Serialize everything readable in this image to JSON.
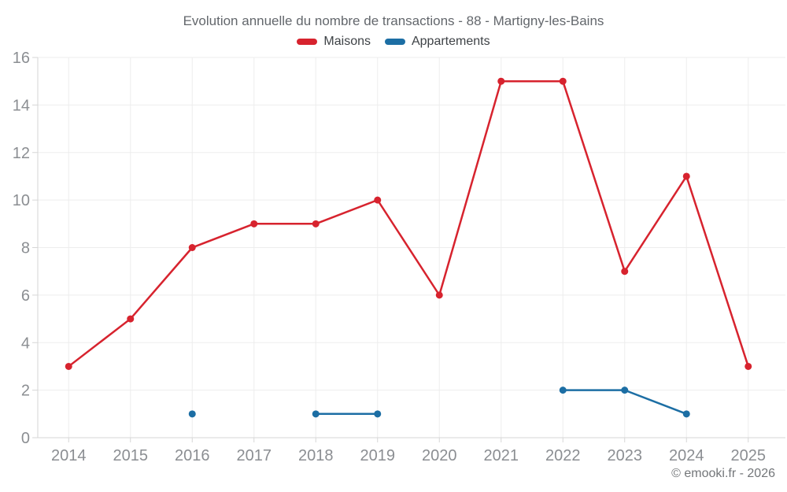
{
  "chart_data": {
    "type": "line",
    "title": "Evolution annuelle du nombre de transactions - 88 - Martigny-les-Bains",
    "categories": [
      "2014",
      "2015",
      "2016",
      "2017",
      "2018",
      "2019",
      "2020",
      "2021",
      "2022",
      "2023",
      "2024",
      "2025"
    ],
    "series": [
      {
        "name": "Maisons",
        "color": "#d7232e",
        "values": [
          3,
          5,
          8,
          9,
          9,
          10,
          6,
          15,
          15,
          7,
          11,
          3
        ]
      },
      {
        "name": "Appartements",
        "color": "#1c6ea4",
        "values": [
          null,
          null,
          1,
          null,
          1,
          1,
          null,
          null,
          2,
          2,
          1,
          null
        ]
      }
    ],
    "ylim": [
      0,
      16
    ],
    "ytick_step": 2,
    "yticks": [
      0,
      2,
      4,
      6,
      8,
      10,
      12,
      14,
      16
    ],
    "grid": true,
    "legend_position": "top"
  },
  "colors": {
    "maisons": "#d7232e",
    "appartements": "#1c6ea4",
    "gridline": "#ededed",
    "axis_line": "#d6d6d6"
  },
  "footer": {
    "copyright": "© emooki.fr - 2026"
  }
}
